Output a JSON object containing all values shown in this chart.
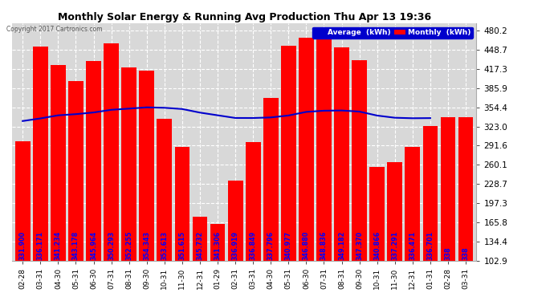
{
  "title": "Monthly Solar Energy & Running Avg Production Thu Apr 13 19:36",
  "copyright": "Copyright 2017 Cartronics.com",
  "categories": [
    "02-28",
    "03-31",
    "04-30",
    "05-31",
    "06-30",
    "07-31",
    "08-31",
    "09-30",
    "10-31",
    "11-30",
    "12-31",
    "01-29",
    "02-31",
    "03-31",
    "04-30",
    "05-31",
    "06-30",
    "07-31",
    "08-31",
    "09-30",
    "10-31",
    "11-30",
    "12-31",
    "01-31",
    "02-28",
    "03-31"
  ],
  "monthly_values": [
    299.0,
    454.0,
    424.0,
    397.0,
    430.0,
    459.0,
    420.0,
    415.0,
    336.0,
    290.0,
    175.0,
    163.0,
    234.0,
    297.0,
    370.0,
    456.0,
    468.0,
    474.0,
    453.0,
    432.0,
    256.0,
    264.0,
    289.0,
    324.0,
    338.0,
    338.0
  ],
  "avg_values": [
    331.9,
    336.171,
    341.234,
    343.178,
    345.964,
    350.293,
    352.255,
    354.343,
    353.613,
    351.615,
    345.732,
    341.306,
    336.919,
    336.849,
    337.796,
    340.977,
    346.88,
    348.836,
    349.182,
    347.37,
    340.866,
    337.291,
    336.471,
    336.701,
    null,
    null
  ],
  "bar_color": "#ff0000",
  "line_color": "#0000cc",
  "bg_color": "#ffffff",
  "plot_bg_color": "#d8d8d8",
  "grid_color": "#ffffff",
  "bar_label_color": "#0000ff",
  "title_color": "#000000",
  "ylim_min": 102.9,
  "ylim_max": 492.0,
  "yticks": [
    102.9,
    134.4,
    165.8,
    197.3,
    228.7,
    260.1,
    291.6,
    323.0,
    354.4,
    385.9,
    417.3,
    448.7,
    480.2
  ],
  "legend_avg_color": "#0000cc",
  "legend_monthly_color": "#ff0000",
  "legend_avg_label": "Average  (kWh)",
  "legend_monthly_label": "Monthly  (kWh)",
  "bar_label_fontsize": 5.8,
  "figwidth": 6.9,
  "figheight": 3.75,
  "dpi": 100
}
